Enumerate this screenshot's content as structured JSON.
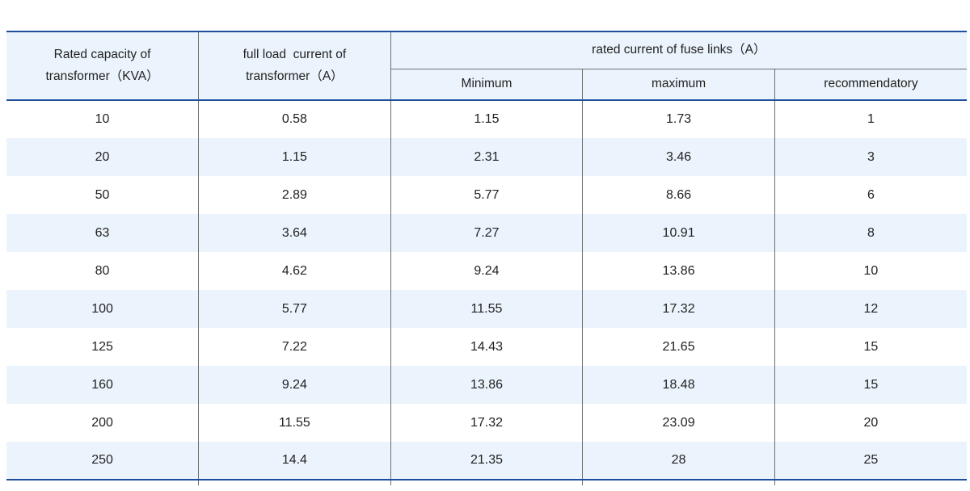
{
  "table": {
    "title_semantic": "transformer fuse link rating table",
    "header": {
      "rated_capacity": "Rated capacity of\ntransformer（KVA）",
      "full_load_current": "full load  current of\ntransformer（A）",
      "fuse_links_group": "rated current of fuse links（A）",
      "sub": [
        "Minimum",
        "maximum",
        "recommendatory"
      ]
    },
    "rows": [
      [
        "10",
        "0.58",
        "1.15",
        "1.73",
        "1"
      ],
      [
        "20",
        "1.15",
        "2.31",
        "3.46",
        "3"
      ],
      [
        "50",
        "2.89",
        "5.77",
        "8.66",
        "6"
      ],
      [
        "63",
        "3.64",
        "7.27",
        "10.91",
        "8"
      ],
      [
        "80",
        "4.62",
        "9.24",
        "13.86",
        "10"
      ],
      [
        "100",
        "5.77",
        "11.55",
        "17.32",
        "12"
      ],
      [
        "125",
        "7.22",
        "14.43",
        "21.65",
        "15"
      ],
      [
        "160",
        "9.24",
        "13.86",
        "18.48",
        "15"
      ],
      [
        "200",
        "11.55",
        "17.32",
        "23.09",
        "20"
      ],
      [
        "250",
        "14.4",
        "21.35",
        "28",
        "25"
      ]
    ]
  },
  "colors": {
    "accent_blue": "#1d4f9e",
    "header_bg": "#ebf4fc",
    "row_alt": "#ebf4fc",
    "border_gray": "#6e6e6e",
    "text": "#222222"
  }
}
